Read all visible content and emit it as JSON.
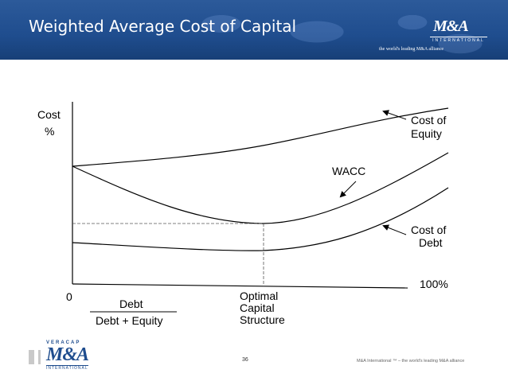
{
  "header": {
    "title": "Weighted Average Cost of Capital",
    "logo_text": "M&A",
    "logo_sub": "INTERNATIONAL",
    "tagline": "the world's leading M&A alliance"
  },
  "diagram": {
    "y_label_1": "Cost",
    "y_label_2": "%",
    "origin_label": "0",
    "x_end_label": "100%",
    "ratio_numerator": "Debt",
    "ratio_denominator": "Debt + Equity",
    "optimal_1": "Optimal",
    "optimal_2": "Capital",
    "optimal_3": "Structure",
    "equity_1": "Cost of",
    "equity_2": "Equity",
    "wacc": "WACC",
    "debt_1": "Cost of",
    "debt_2": "Debt"
  },
  "footer": {
    "logo_top": "VERACAP",
    "logo_main": "M&A",
    "logo_bottom": "INTERNATIONAL",
    "page_number": "36",
    "footnote": "M&A International ™ – the world's leading M&A alliance"
  },
  "colors": {
    "header_blue": "#1f4d8e",
    "line": "#000000"
  }
}
